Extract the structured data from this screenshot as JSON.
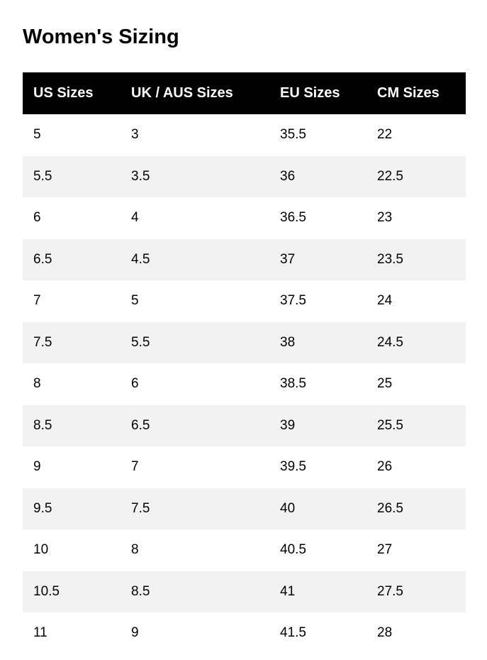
{
  "title": "Women's Sizing",
  "headers": [
    "US Sizes",
    "UK / AUS Sizes",
    "EU Sizes",
    "CM Sizes"
  ],
  "rows": [
    [
      "5",
      "3",
      "35.5",
      "22"
    ],
    [
      "5.5",
      "3.5",
      "36",
      "22.5"
    ],
    [
      "6",
      "4",
      "36.5",
      "23"
    ],
    [
      "6.5",
      "4.5",
      "37",
      "23.5"
    ],
    [
      "7",
      "5",
      "37.5",
      "24"
    ],
    [
      "7.5",
      "5.5",
      "38",
      "24.5"
    ],
    [
      "8",
      "6",
      "38.5",
      "25"
    ],
    [
      "8.5",
      "6.5",
      "39",
      "25.5"
    ],
    [
      "9",
      "7",
      "39.5",
      "26"
    ],
    [
      "9.5",
      "7.5",
      "40",
      "26.5"
    ],
    [
      "10",
      "8",
      "40.5",
      "27"
    ],
    [
      "10.5",
      "8.5",
      "41",
      "27.5"
    ],
    [
      "11",
      "9",
      "41.5",
      "28"
    ]
  ],
  "colors": {
    "header_bg": "#000000",
    "header_text": "#ffffff",
    "alt_row_bg": "#f2f2f2"
  }
}
